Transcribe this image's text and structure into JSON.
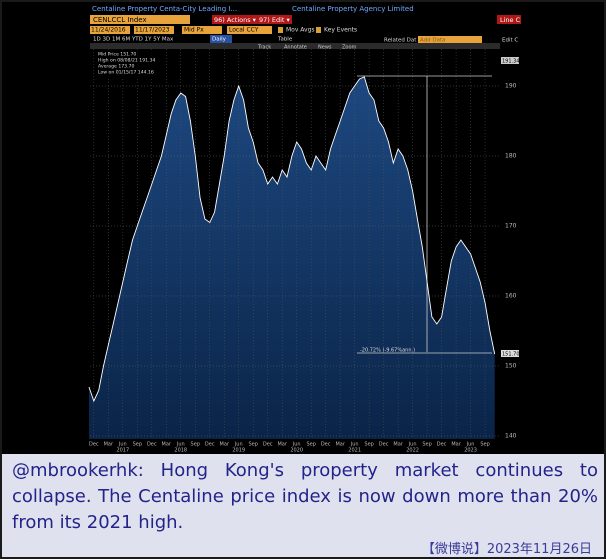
{
  "header": {
    "title_left": "Centaline Property Centa-City Leading I...",
    "title_right": "Centaline Property Agency Limited",
    "ticker": "CENLCCL Index",
    "actions": "96) Actions ▾",
    "edit": "97) Edit ▾",
    "line": "Line C",
    "start_date": "11/24/2016",
    "end_date": "11/17/2023",
    "field": "Mid Px",
    "currency": "Local CCY",
    "mov_avgs": "Mov Avgs",
    "key_events": "Key Events",
    "periods": "1D  3D  1M  6M  YTD  1Y  5Y  Max",
    "frequency": "Daily",
    "table": "Table",
    "track": "Track",
    "annotate": "Annotate",
    "news": "News",
    "zoom": "Zoom",
    "related": "Related Dat",
    "add_data": "Add Data",
    "edit_chart": "Edit C"
  },
  "legend": [
    "Mid Price  151.70",
    "High on 08/08/21  191.34",
    "Average  173.70",
    "Low on 01/15/17  144.16"
  ],
  "annotation": "-20.72% (-9.67%ann.)",
  "last_label": "151.70",
  "high_label": "191.34",
  "chart_data": {
    "type": "area",
    "color": "#ffffff",
    "x": [
      "2016-11",
      "2016-12",
      "2017-01",
      "2017-02",
      "2017-03",
      "2017-04",
      "2017-05",
      "2017-06",
      "2017-07",
      "2017-08",
      "2017-09",
      "2017-10",
      "2017-11",
      "2017-12",
      "2018-01",
      "2018-02",
      "2018-03",
      "2018-04",
      "2018-05",
      "2018-06",
      "2018-07",
      "2018-08",
      "2018-09",
      "2018-10",
      "2018-11",
      "2018-12",
      "2019-01",
      "2019-02",
      "2019-03",
      "2019-04",
      "2019-05",
      "2019-06",
      "2019-07",
      "2019-08",
      "2019-09",
      "2019-10",
      "2019-11",
      "2019-12",
      "2020-01",
      "2020-02",
      "2020-03",
      "2020-04",
      "2020-05",
      "2020-06",
      "2020-07",
      "2020-08",
      "2020-09",
      "2020-10",
      "2020-11",
      "2020-12",
      "2021-01",
      "2021-02",
      "2021-03",
      "2021-04",
      "2021-05",
      "2021-06",
      "2021-07",
      "2021-08",
      "2021-09",
      "2021-10",
      "2021-11",
      "2021-12",
      "2022-01",
      "2022-02",
      "2022-03",
      "2022-04",
      "2022-05",
      "2022-06",
      "2022-07",
      "2022-08",
      "2022-09",
      "2022-10",
      "2022-11",
      "2022-12",
      "2023-01",
      "2023-02",
      "2023-03",
      "2023-04",
      "2023-05",
      "2023-06",
      "2023-07",
      "2023-08",
      "2023-09",
      "2023-10",
      "2023-11"
    ],
    "values": [
      147,
      145,
      146.5,
      150,
      153,
      156,
      159,
      162,
      165,
      168,
      170,
      172,
      174,
      176,
      178,
      180,
      183,
      186,
      188,
      189,
      188.5,
      185,
      180,
      174,
      171,
      170.5,
      172,
      176,
      180,
      185,
      188,
      190,
      188,
      184,
      182,
      179,
      178,
      176,
      177,
      176,
      178,
      177,
      180,
      182,
      181,
      179,
      178,
      180,
      179,
      178,
      181,
      183,
      185,
      187,
      189,
      190,
      191,
      191.3,
      189,
      188,
      185,
      184,
      182,
      179,
      181,
      180,
      178,
      175,
      171,
      167,
      162,
      157,
      156,
      157,
      161,
      165,
      167,
      168,
      167,
      166,
      164,
      162,
      159,
      155,
      151.7
    ],
    "ylim": [
      139.57,
      195.29
    ],
    "yticks": [
      140,
      150,
      160,
      170,
      180,
      190
    ],
    "xticks": [
      {
        "value": "2016-12",
        "label": "Dec"
      },
      {
        "value": "2017-03",
        "label": "Mar"
      },
      {
        "value": "2017-06",
        "label": "Jun"
      },
      {
        "value": "2017-09",
        "label": "Sep"
      },
      {
        "value": "2017-12",
        "label": "Dec"
      },
      {
        "value": "2018-03",
        "label": "Mar"
      },
      {
        "value": "2018-06",
        "label": "Jun"
      },
      {
        "value": "2018-09",
        "label": "Sep"
      },
      {
        "value": "2018-12",
        "label": "Dec"
      },
      {
        "value": "2019-03",
        "label": "Mar"
      },
      {
        "value": "2019-06",
        "label": "Jun"
      },
      {
        "value": "2019-09",
        "label": "Sep"
      },
      {
        "value": "2019-12",
        "label": "Dec"
      },
      {
        "value": "2020-03",
        "label": "Mar"
      },
      {
        "value": "2020-06",
        "label": "Jun"
      },
      {
        "value": "2020-09",
        "label": "Sep"
      },
      {
        "value": "2020-12",
        "label": "Dec"
      },
      {
        "value": "2021-03",
        "label": "Mar"
      },
      {
        "value": "2021-06",
        "label": "Jun"
      },
      {
        "value": "2021-09",
        "label": "Sep"
      },
      {
        "value": "2021-12",
        "label": "Dec"
      },
      {
        "value": "2022-03",
        "label": "Mar"
      },
      {
        "value": "2022-06",
        "label": "Jun"
      },
      {
        "value": "2022-09",
        "label": "Sep"
      },
      {
        "value": "2022-12",
        "label": "Dec"
      },
      {
        "value": "2023-03",
        "label": "Mar"
      },
      {
        "value": "2023-06",
        "label": "Jun"
      },
      {
        "value": "2023-09",
        "label": "Sep"
      }
    ],
    "year_labels": [
      {
        "value": "2017-06",
        "label": "2017"
      },
      {
        "value": "2018-06",
        "label": "2018"
      },
      {
        "value": "2019-06",
        "label": "2019"
      },
      {
        "value": "2020-06",
        "label": "2020"
      },
      {
        "value": "2021-06",
        "label": "2021"
      },
      {
        "value": "2022-06",
        "label": "2022"
      },
      {
        "value": "2023-06",
        "label": "2023"
      }
    ],
    "grid": true
  },
  "caption": "@mbrookerhk: Hong Kong's property market continues to collapse. The Centaline price index is now down more than 20% from its 2021 high.",
  "footer": "【微博说】2023年11月26日"
}
